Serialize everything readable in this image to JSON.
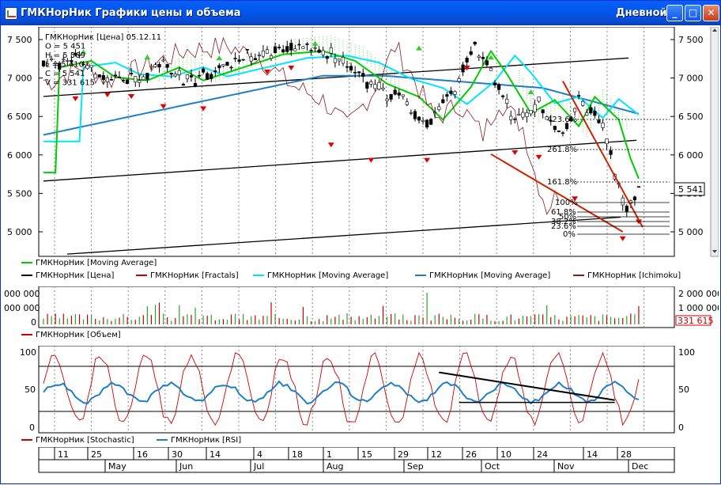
{
  "window": {
    "title": "ГМКНорНик Графики цены и объема",
    "period": "Дневной",
    "buttons": {
      "minimize": "_",
      "maximize": "□",
      "close": "✕"
    }
  },
  "price_panel": {
    "info": [
      "ГМКНорНик [Цена] 05.12.11",
      "O = 5 451",
      "H = 5 569",
      "L = 5 410",
      "C = 5 541",
      "V = 331 615"
    ],
    "y_ticks": [
      "7 500",
      "7 000",
      "6 500",
      "6 000",
      "5 500",
      "5 000"
    ],
    "last_price": "5 541",
    "fib_labels": [
      "423.6%",
      "261.8%",
      "161.8%",
      "100%",
      "61.8%",
      "50%",
      "38.2%",
      "23.6%",
      "0%"
    ],
    "legend": [
      {
        "name": "ГМКНорНик [Moving Average]",
        "color": "#00CC00"
      },
      {
        "name": "ГМКНорНик [Цена]",
        "color": "#000000"
      },
      {
        "name": "ГМКНорНик [Fractals]",
        "color": "#CC0000"
      },
      {
        "name": "ГМКНорНик [Moving Average]",
        "color": "#00E5FF"
      },
      {
        "name": "ГМКНорНик [Moving Average]",
        "color": "#1E7FC8"
      },
      {
        "name": "ГМКНорНик [Ichimoku]",
        "color": "#8B1A1A"
      }
    ]
  },
  "volume_panel": {
    "left_ticks": [
      "000 000",
      "000 000",
      "0"
    ],
    "right_ticks": [
      "2 000 000",
      "1 000 000",
      "0"
    ],
    "last_volume": "331 615",
    "legend": [
      {
        "name": "ГМКНорНик [Объем]",
        "color": "#CC0000"
      }
    ]
  },
  "oscillator_panel": {
    "ticks": [
      "100",
      "50",
      "0"
    ],
    "legend": [
      {
        "name": "ГМКНорНик [Stochastic]",
        "color": "#CC0000"
      },
      {
        "name": "ГМКНорНик [RSI]",
        "color": "#1E7FC8"
      }
    ]
  },
  "time_axis": {
    "days": [
      "11",
      "25",
      "16",
      "30",
      "14",
      "4",
      "18",
      "1",
      "15",
      "29",
      "12",
      "26",
      "10",
      "24",
      "14",
      "28"
    ],
    "months": [
      "May",
      "Jun",
      "Jul",
      "Aug",
      "Sep",
      "Oct",
      "Nov",
      "Dec"
    ]
  },
  "colors": {
    "ma_green": "#00CC00",
    "ma_cyan": "#00E5FF",
    "ma_blue": "#1E7FC8",
    "ichimoku": "#8B1A1A",
    "fractal": "#E00000",
    "fractal_up": "#33CC33",
    "cloud": "#00CC00"
  }
}
